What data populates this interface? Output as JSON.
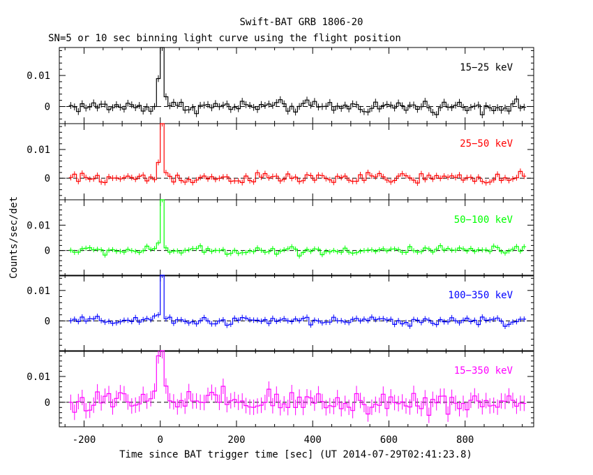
{
  "chart_data": {
    "type": "line",
    "title": "Swift-BAT GRB 1806-20",
    "subtitle": "SN=5 or 10 sec binning light curve using the flight position",
    "xlabel": "Time since BAT trigger time [sec] (UT 2014-07-29T02:41:23.8)",
    "ylabel": "Counts/sec/det",
    "xlim": [
      -265,
      980
    ],
    "x_ticks": [
      "-200",
      "0",
      "200",
      "400",
      "600",
      "800"
    ],
    "x_tick_values": [
      -200,
      0,
      200,
      400,
      600,
      800
    ],
    "y_ticks": [
      "0",
      "0.01"
    ],
    "y_tick_values": [
      0,
      0.01
    ],
    "bin_width_sec": 10,
    "x_start_sec": -240,
    "x_end_sec": 960,
    "panels": [
      {
        "name": "15-25 keV",
        "label": "15−25 keV",
        "color": "#000000",
        "ylim": [
          -0.0055,
          0.019
        ],
        "noise": 0.0014,
        "err": 0.0011,
        "peak": 0.019,
        "peak_shoulder": 0.009
      },
      {
        "name": "25-50 keV",
        "label": "25−50 keV",
        "color": "#ff0000",
        "ylim": [
          -0.0075,
          0.019
        ],
        "noise": 0.0013,
        "err": 0.001,
        "peak": 0.019,
        "peak_shoulder": 0.0055
      },
      {
        "name": "50-100 keV",
        "label": "50−100 keV",
        "color": "#00ff00",
        "ylim": [
          -0.01,
          0.02
        ],
        "noise": 0.0012,
        "err": 0.001,
        "peak": 0.02,
        "peak_shoulder": 0.003
      },
      {
        "name": "100-350 keV",
        "label": "100−350 keV",
        "color": "#0000ff",
        "ylim": [
          -0.01,
          0.015
        ],
        "noise": 0.001,
        "err": 0.0009,
        "peak": 0.015,
        "peak_shoulder": 0.002
      },
      {
        "name": "15-350 keV",
        "label": "15−350 keV",
        "color": "#ff00ff",
        "ylim": [
          -0.0095,
          0.02
        ],
        "noise": 0.0035,
        "err": 0.003,
        "peak": 0.02,
        "peak_shoulder": 0.018
      }
    ]
  }
}
